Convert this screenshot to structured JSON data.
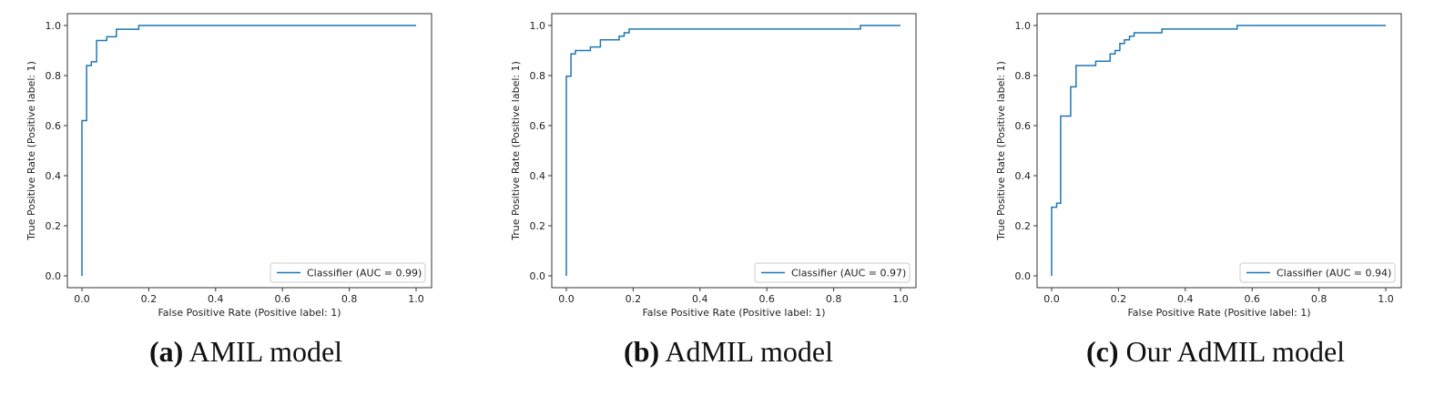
{
  "chart_data": [
    {
      "type": "line",
      "xlabel": "False Positive Rate (Positive label: 1)",
      "ylabel": "True Positive Rate (Positive label: 1)",
      "xlim": [
        0,
        1
      ],
      "ylim": [
        0,
        1
      ],
      "xticks": [
        "0.0",
        "0.2",
        "0.4",
        "0.6",
        "0.8",
        "1.0"
      ],
      "yticks": [
        "0.0",
        "0.2",
        "0.4",
        "0.6",
        "0.8",
        "1.0"
      ],
      "grid": false,
      "legend": "bottom-right",
      "series": [
        {
          "name": "Classifier (AUC = 0.99)",
          "color": "#1f77b4",
          "x": [
            0,
            0,
            0.014,
            0.014,
            0.028,
            0.028,
            0.044,
            0.044,
            0.074,
            0.074,
            0.103,
            0.103,
            0.17,
            0.17,
            1.0
          ],
          "y": [
            0,
            0.62,
            0.62,
            0.84,
            0.84,
            0.855,
            0.855,
            0.94,
            0.94,
            0.955,
            0.955,
            0.985,
            0.985,
            1.0,
            1.0
          ]
        }
      ],
      "caption_label": "(a)",
      "caption_text": "AMIL model"
    },
    {
      "type": "line",
      "xlabel": "False Positive Rate (Positive label: 1)",
      "ylabel": "True Positive Rate (Positive label: 1)",
      "xlim": [
        0,
        1
      ],
      "ylim": [
        0,
        1
      ],
      "xticks": [
        "0.0",
        "0.2",
        "0.4",
        "0.6",
        "0.8",
        "1.0"
      ],
      "yticks": [
        "0.0",
        "0.2",
        "0.4",
        "0.6",
        "0.8",
        "1.0"
      ],
      "grid": false,
      "legend": "bottom-right",
      "series": [
        {
          "name": "Classifier (AUC = 0.97)",
          "color": "#1f77b4",
          "x": [
            0,
            0,
            0.014,
            0.014,
            0.027,
            0.027,
            0.072,
            0.072,
            0.102,
            0.102,
            0.158,
            0.158,
            0.173,
            0.173,
            0.188,
            0.188,
            0.88,
            0.88,
            1.0
          ],
          "y": [
            0,
            0.797,
            0.797,
            0.886,
            0.886,
            0.9,
            0.9,
            0.914,
            0.914,
            0.943,
            0.943,
            0.957,
            0.957,
            0.971,
            0.971,
            0.986,
            0.986,
            1.0,
            1.0
          ]
        }
      ],
      "caption_label": "(b)",
      "caption_text": "AdMIL model"
    },
    {
      "type": "line",
      "xlabel": "False Positive Rate (Positive label: 1)",
      "ylabel": "True Positive Rate (Positive label: 1)",
      "xlim": [
        0,
        1
      ],
      "ylim": [
        0,
        1
      ],
      "xticks": [
        "0.0",
        "0.2",
        "0.4",
        "0.6",
        "0.8",
        "1.0"
      ],
      "yticks": [
        "0.0",
        "0.2",
        "0.4",
        "0.6",
        "0.8",
        "1.0"
      ],
      "grid": false,
      "legend": "bottom-right",
      "series": [
        {
          "name": "Classifier (AUC = 0.94)",
          "color": "#1f77b4",
          "x": [
            0,
            0,
            0.015,
            0.015,
            0.027,
            0.027,
            0.057,
            0.057,
            0.073,
            0.073,
            0.132,
            0.132,
            0.175,
            0.175,
            0.19,
            0.19,
            0.204,
            0.204,
            0.218,
            0.218,
            0.233,
            0.233,
            0.247,
            0.247,
            0.33,
            0.33,
            0.555,
            0.555,
            1.0
          ],
          "y": [
            0,
            0.274,
            0.274,
            0.29,
            0.29,
            0.638,
            0.638,
            0.755,
            0.755,
            0.84,
            0.84,
            0.857,
            0.857,
            0.886,
            0.886,
            0.9,
            0.9,
            0.928,
            0.928,
            0.943,
            0.943,
            0.957,
            0.957,
            0.971,
            0.971,
            0.986,
            0.986,
            1.0,
            1.0
          ]
        }
      ],
      "caption_label": "(c)",
      "caption_text": "Our AdMIL model"
    }
  ]
}
